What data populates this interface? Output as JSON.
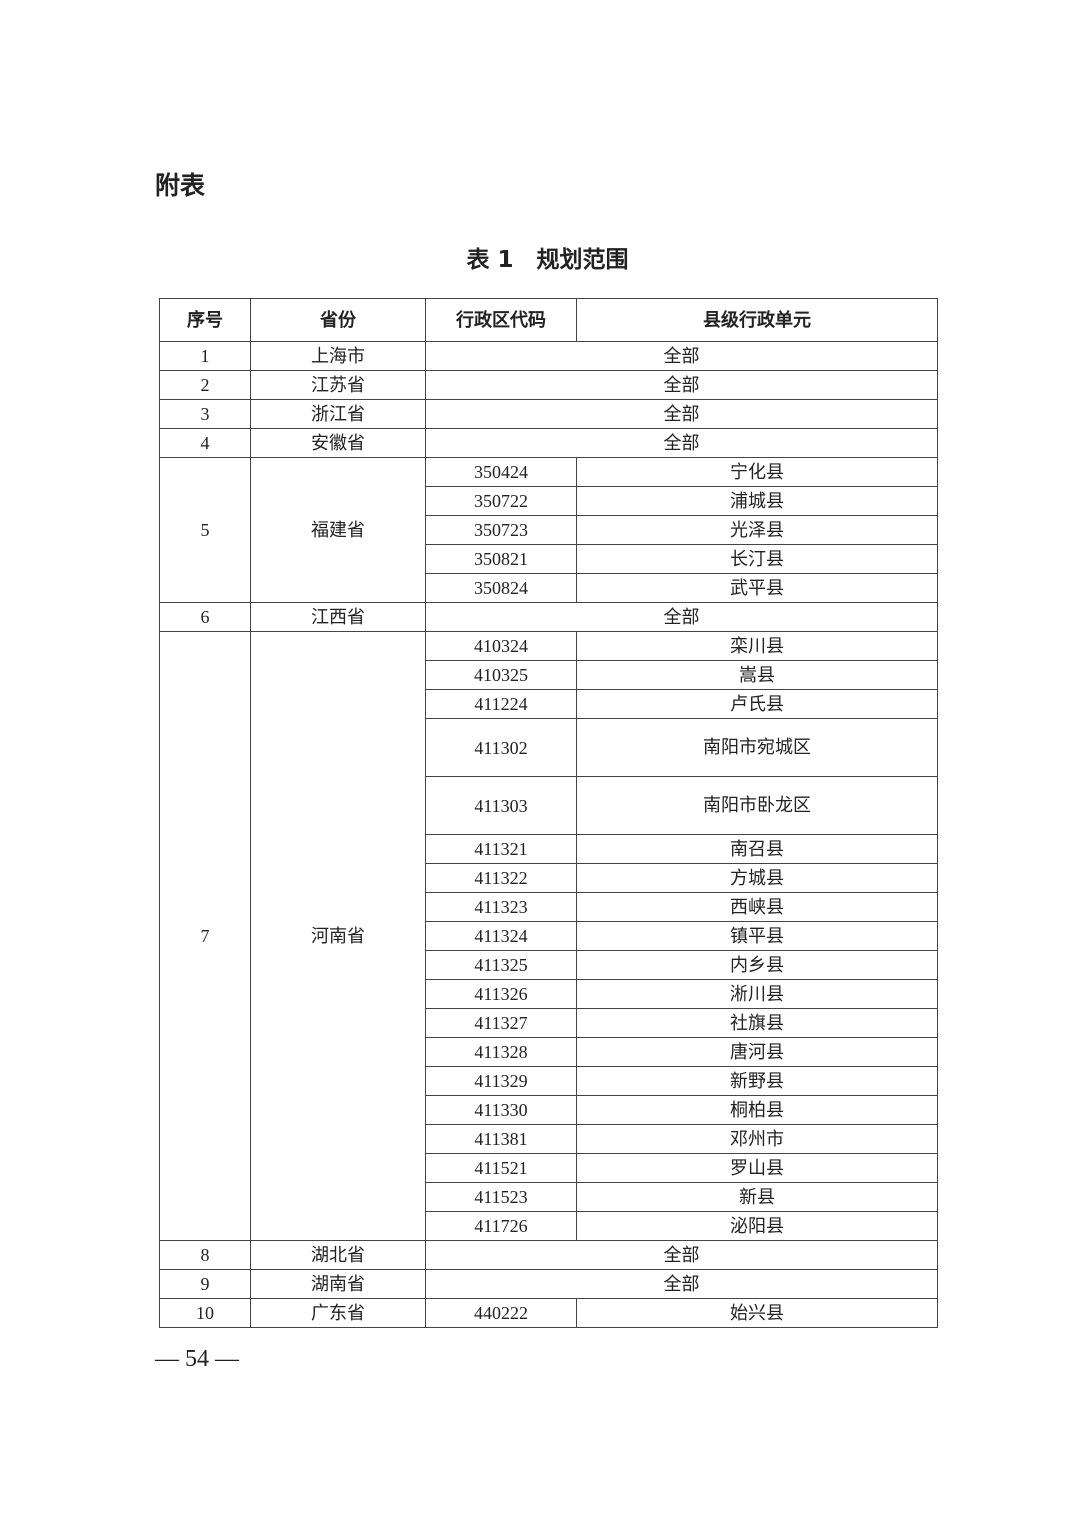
{
  "appendix_label": "附表",
  "table_title": "表 1　规划范围",
  "headers": [
    "序号",
    "省份",
    "行政区代码",
    "县级行政单元"
  ],
  "all_label": "全部",
  "provinces": [
    {
      "no": "1",
      "name": "上海市",
      "all": true
    },
    {
      "no": "2",
      "name": "江苏省",
      "all": true
    },
    {
      "no": "3",
      "name": "浙江省",
      "all": true
    },
    {
      "no": "4",
      "name": "安徽省",
      "all": true
    },
    {
      "no": "5",
      "name": "福建省",
      "units": [
        {
          "code": "350424",
          "name": "宁化县"
        },
        {
          "code": "350722",
          "name": "浦城县"
        },
        {
          "code": "350723",
          "name": "光泽县"
        },
        {
          "code": "350821",
          "name": "长汀县"
        },
        {
          "code": "350824",
          "name": "武平县"
        }
      ]
    },
    {
      "no": "6",
      "name": "江西省",
      "all": true
    },
    {
      "no": "7",
      "name": "河南省",
      "units": [
        {
          "code": "410324",
          "name": "栾川县"
        },
        {
          "code": "410325",
          "name": "嵩县"
        },
        {
          "code": "411224",
          "name": "卢氏县"
        },
        {
          "code": "411302",
          "prefix": "南阳市",
          "name": "宛城区",
          "tall": true
        },
        {
          "code": "411303",
          "prefix": "南阳市",
          "name": "卧龙区",
          "tall": true
        },
        {
          "code": "411321",
          "name": "南召县"
        },
        {
          "code": "411322",
          "name": "方城县"
        },
        {
          "code": "411323",
          "name": "西峡县"
        },
        {
          "code": "411324",
          "name": "镇平县"
        },
        {
          "code": "411325",
          "name": "内乡县"
        },
        {
          "code": "411326",
          "name": "淅川县"
        },
        {
          "code": "411327",
          "name": "社旗县"
        },
        {
          "code": "411328",
          "name": "唐河县"
        },
        {
          "code": "411329",
          "name": "新野县"
        },
        {
          "code": "411330",
          "name": "桐柏县"
        },
        {
          "code": "411381",
          "name": "邓州市"
        },
        {
          "code": "411521",
          "name": "罗山县"
        },
        {
          "code": "411523",
          "name": "新县"
        },
        {
          "code": "411726",
          "name": "泌阳县"
        }
      ]
    },
    {
      "no": "8",
      "name": "湖北省",
      "all": true
    },
    {
      "no": "9",
      "name": "湖南省",
      "all": true
    },
    {
      "no": "10",
      "name": "广东省",
      "units": [
        {
          "code": "440222",
          "name": "始兴县"
        }
      ]
    }
  ],
  "page_number": "— 54 —"
}
